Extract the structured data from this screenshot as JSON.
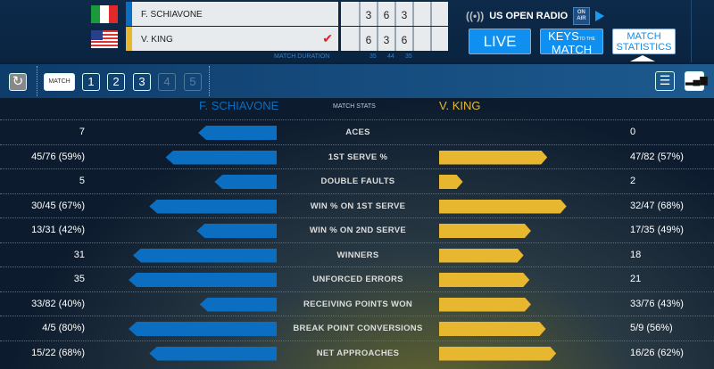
{
  "players": [
    {
      "name": "F. SCHIAVONE",
      "country": "Italy",
      "color": "#0b6ec0",
      "sets": [
        "3",
        "6",
        "3"
      ],
      "winner": false
    },
    {
      "name": "V. KING",
      "country": "USA",
      "color": "#e7b730",
      "sets": [
        "6",
        "3",
        "6"
      ],
      "winner": true
    }
  ],
  "match_duration": {
    "label": "MATCH DURATION",
    "sets": [
      "35",
      "44",
      "35"
    ]
  },
  "radio": {
    "label": "US OPEN RADIO",
    "on_air_1": "ON",
    "on_air_2": "AIR"
  },
  "nav": {
    "live": "LIVE",
    "keys_1": "KEYS",
    "keys_small": "TO THE",
    "keys_2": "MATCH",
    "stats_1": "MATCH",
    "stats_2": "STATISTICS",
    "active": "MATCH STATISTICS"
  },
  "set_tabs": {
    "match": "MATCH",
    "sets": [
      "1",
      "2",
      "3",
      "4",
      "5"
    ],
    "selected": "MATCH",
    "disabled": [
      "4",
      "5"
    ]
  },
  "stats_header": {
    "left": "F. SCHIAVONE",
    "center": "MATCH STATS",
    "right": "V. KING"
  },
  "stats": [
    {
      "label": "ACES",
      "left": "7",
      "right": "0",
      "left_bar": 53,
      "right_bar": 0
    },
    {
      "label": "1ST SERVE %",
      "left": "45/76 (59%)",
      "right": "47/82 (57%)",
      "left_bar": 75,
      "right_bar": 73
    },
    {
      "label": "DOUBLE FAULTS",
      "left": "5",
      "right": "2",
      "left_bar": 42,
      "right_bar": 16
    },
    {
      "label": "WIN % ON 1ST SERVE",
      "left": "30/45 (67%)",
      "right": "32/47 (68%)",
      "left_bar": 86,
      "right_bar": 86
    },
    {
      "label": "WIN % ON 2ND SERVE",
      "left": "13/31 (42%)",
      "right": "17/35 (49%)",
      "left_bar": 54,
      "right_bar": 62
    },
    {
      "label": "WINNERS",
      "left": "31",
      "right": "18",
      "left_bar": 97,
      "right_bar": 57
    },
    {
      "label": "UNFORCED ERRORS",
      "left": "35",
      "right": "21",
      "left_bar": 100,
      "right_bar": 61
    },
    {
      "label": "RECEIVING POINTS WON",
      "left": "33/82 (40%)",
      "right": "33/76 (43%)",
      "left_bar": 52,
      "right_bar": 62
    },
    {
      "label": "BREAK POINT CONVERSIONS",
      "left": "4/5 (80%)",
      "right": "5/9 (56%)",
      "left_bar": 100,
      "right_bar": 72
    },
    {
      "label": "NET APPROACHES",
      "left": "15/22 (68%)",
      "right": "16/26 (62%)",
      "left_bar": 86,
      "right_bar": 79
    }
  ]
}
